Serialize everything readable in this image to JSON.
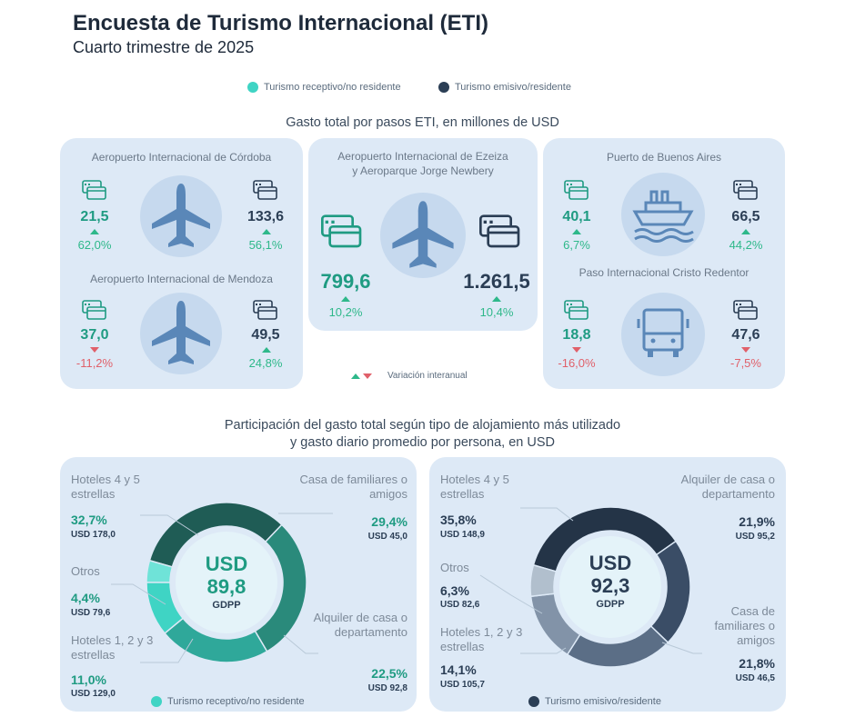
{
  "header": {
    "title": "Encuesta de Turismo Internacional (ETI)",
    "subtitle": "Cuarto trimestre de 2025"
  },
  "legend": {
    "receptivo": "Turismo receptivo/no residente",
    "emisivo": "Turismo emisivo/residente",
    "variacion": "Variación interanual"
  },
  "colors": {
    "receptivo": "#3fd4c4",
    "emisivo": "#2b3e55",
    "up": "#2eb88a",
    "down": "#e0606a",
    "panel": "#dde9f6"
  },
  "gasto_pasos": {
    "title": "Gasto total por pasos ETI, en millones de USD",
    "pasos": [
      {
        "name": "Aeropuerto Internacional de Córdoba",
        "icon": "airplane-icon",
        "receptivo": "21,5",
        "receptivo_var": "62,0%",
        "receptivo_dir": "up",
        "emisivo": "133,6",
        "emisivo_var": "56,1%",
        "emisivo_dir": "up"
      },
      {
        "name": "Aeropuerto Internacional de Mendoza",
        "icon": "airplane-icon",
        "receptivo": "37,0",
        "receptivo_var": "-11,2%",
        "receptivo_dir": "down",
        "emisivo": "49,5",
        "emisivo_var": "24,8%",
        "emisivo_dir": "up"
      },
      {
        "name": "Aeropuerto Internacional de Ezeiza",
        "name2": "y Aeroparque Jorge Newbery",
        "icon": "airplane-icon",
        "receptivo": "799,6",
        "receptivo_var": "10,2%",
        "receptivo_dir": "up",
        "emisivo": "1.261,5",
        "emisivo_var": "10,4%",
        "emisivo_dir": "up"
      },
      {
        "name": "Puerto de Buenos Aires",
        "icon": "ship-icon",
        "receptivo": "40,1",
        "receptivo_var": "6,7%",
        "receptivo_dir": "up",
        "emisivo": "66,5",
        "emisivo_var": "44,2%",
        "emisivo_dir": "up"
      },
      {
        "name": "Paso Internacional Cristo Redentor",
        "icon": "truck-icon",
        "receptivo": "18,8",
        "receptivo_var": "-16,0%",
        "receptivo_dir": "down",
        "emisivo": "47,6",
        "emisivo_var": "-7,5%",
        "emisivo_dir": "down"
      }
    ]
  },
  "alojamiento": {
    "title_line1": "Participación del gasto total según tipo de alojamiento más utilizado",
    "title_line2": "y gasto diario promedio por persona, en USD",
    "receptivo": {
      "center_currency": "USD",
      "center_value": "89,8",
      "center_label": "GDPP",
      "footer": "Turismo receptivo/no residente",
      "items": [
        {
          "label": "Hoteles 4 y 5 estrellas",
          "pct": "32,7%",
          "usd": "USD 178,0"
        },
        {
          "label": "Casa de familiares o amigos",
          "pct": "29,4%",
          "usd": "USD 45,0"
        },
        {
          "label": "Otros",
          "pct": "4,4%",
          "usd": "USD 79,6"
        },
        {
          "label": "Hoteles 1, 2 y 3 estrellas",
          "pct": "11,0%",
          "usd": "USD 129,0"
        },
        {
          "label": "Alquiler de casa o departamento",
          "pct": "22,5%",
          "usd": "USD 92,8"
        }
      ]
    },
    "emisivo": {
      "center_currency": "USD",
      "center_value": "92,3",
      "center_label": "GDPP",
      "footer": "Turismo emisivo/residente",
      "items": [
        {
          "label": "Hoteles 4 y 5 estrellas",
          "pct": "35,8%",
          "usd": "USD 148,9"
        },
        {
          "label": "Alquiler de casa o departamento",
          "pct": "21,9%",
          "usd": "USD 95,2"
        },
        {
          "label": "Otros",
          "pct": "6,3%",
          "usd": "USD 82,6"
        },
        {
          "label": "Hoteles 1, 2 y 3 estrellas",
          "pct": "14,1%",
          "usd": "USD 105,7"
        },
        {
          "label": "Casa de familiares o amigos",
          "pct": "21,8%",
          "usd": "USD 46,5"
        }
      ]
    }
  },
  "chart_data": [
    {
      "type": "bar",
      "title": "Gasto total por pasos ETI, en millones de USD",
      "categories": [
        "Aeropuerto Internacional de Córdoba",
        "Aeropuerto Internacional de Mendoza",
        "Aeropuerto Internacional de Ezeiza y Aeroparque Jorge Newbery",
        "Puerto de Buenos Aires",
        "Paso Internacional Cristo Redentor"
      ],
      "series": [
        {
          "name": "Turismo receptivo/no residente",
          "values": [
            21.5,
            37.0,
            799.6,
            40.1,
            18.8
          ],
          "variation": [
            62.0,
            -11.2,
            10.2,
            6.7,
            -16.0
          ]
        },
        {
          "name": "Turismo emisivo/residente",
          "values": [
            133.6,
            49.5,
            1261.5,
            66.5,
            47.6
          ],
          "variation": [
            56.1,
            24.8,
            10.4,
            44.2,
            -7.5
          ]
        }
      ]
    },
    {
      "type": "pie",
      "title": "Turismo receptivo/no residente",
      "categories": [
        "Hoteles 4 y 5 estrellas",
        "Casa de familiares o amigos",
        "Alquiler de casa o departamento",
        "Hoteles 1, 2 y 3 estrellas",
        "Otros"
      ],
      "values": [
        32.7,
        29.4,
        22.5,
        11.0,
        4.4
      ],
      "gdpp": [
        178.0,
        45.0,
        92.8,
        129.0,
        79.6
      ],
      "colors": [
        "#1f5c55",
        "#2a8a7b",
        "#2fa89a",
        "#3fd4c4",
        "#6fe3d8"
      ],
      "center_value": 89.8
    },
    {
      "type": "pie",
      "title": "Turismo emisivo/residente",
      "categories": [
        "Hoteles 4 y 5 estrellas",
        "Alquiler de casa o departamento",
        "Casa de familiares o amigos",
        "Hoteles 1, 2 y 3 estrellas",
        "Otros"
      ],
      "values": [
        35.8,
        21.9,
        21.8,
        14.1,
        6.3
      ],
      "gdpp": [
        148.9,
        95.2,
        46.5,
        105.7,
        82.6
      ],
      "colors": [
        "#243447",
        "#3a4d66",
        "#5b6e86",
        "#8293a8",
        "#b1bfcd"
      ],
      "center_value": 92.3
    }
  ]
}
